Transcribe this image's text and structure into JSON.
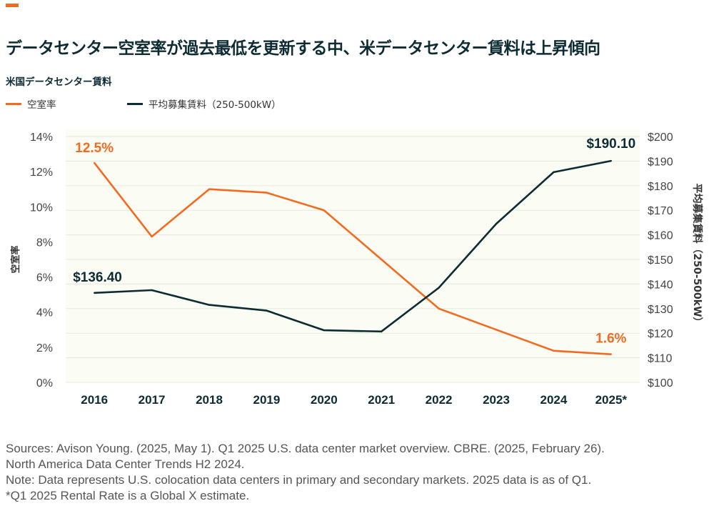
{
  "header": {
    "title": "データセンター空室率が過去最低を更新する中、米データセンター賃料は上昇傾向",
    "subtitle": "米国データセンター賃料"
  },
  "colors": {
    "accent": "#f26b21",
    "vacancy": "#f26b21",
    "rent": "#0d2b33",
    "plot_bg": "#fbfcf4"
  },
  "legend": [
    {
      "label": "空室率",
      "color": "#f26b21"
    },
    {
      "label": "平均募集賃料（250-500kW）",
      "color": "#0d2b33"
    }
  ],
  "chart_data": {
    "type": "line",
    "categories": [
      "2016",
      "2017",
      "2018",
      "2019",
      "2020",
      "2021",
      "2022",
      "2023",
      "2024",
      "2025*"
    ],
    "series": [
      {
        "name": "空室率",
        "axis": "left",
        "unit": "%",
        "values": [
          12.5,
          8.3,
          11.0,
          10.8,
          9.8,
          7.0,
          4.2,
          3.0,
          1.8,
          1.6
        ]
      },
      {
        "name": "平均募集賃料（250-500kW）",
        "axis": "right",
        "unit": "$",
        "values": [
          136.4,
          137.5,
          131.5,
          129.2,
          121.2,
          120.7,
          138.5,
          164.5,
          185.5,
          190.1
        ]
      }
    ],
    "annotations": [
      {
        "series": 0,
        "index": 0,
        "text": "12.5%"
      },
      {
        "series": 0,
        "index": 9,
        "text": "1.6%"
      },
      {
        "series": 1,
        "index": 0,
        "text": "$136.40"
      },
      {
        "series": 1,
        "index": 9,
        "text": "$190.10"
      }
    ],
    "y_left": {
      "label": "空室率",
      "min": 0,
      "max": 14,
      "ticks": [
        "0%",
        "2%",
        "4%",
        "6%",
        "8%",
        "10%",
        "12%",
        "14%"
      ]
    },
    "y_right": {
      "label": "平均募集賃料（250-500kW）",
      "min": 100,
      "max": 200,
      "ticks": [
        "$100",
        "$110",
        "$120",
        "$130",
        "$140",
        "$150",
        "$160",
        "$170",
        "$180",
        "$190",
        "$200"
      ]
    },
    "grid": true
  },
  "footer": {
    "sources_line1": "Sources: Avison Young. (2025, May 1). Q1 2025 U.S. data center market overview. CBRE. (2025, February 26).",
    "sources_line2": "North America Data Center Trends H2 2024.",
    "note": "Note: Data represents U.S. colocation data centers in primary and secondary markets. 2025 data is as of Q1.",
    "estimate": "*Q1 2025 Rental Rate is a Global X estimate."
  }
}
